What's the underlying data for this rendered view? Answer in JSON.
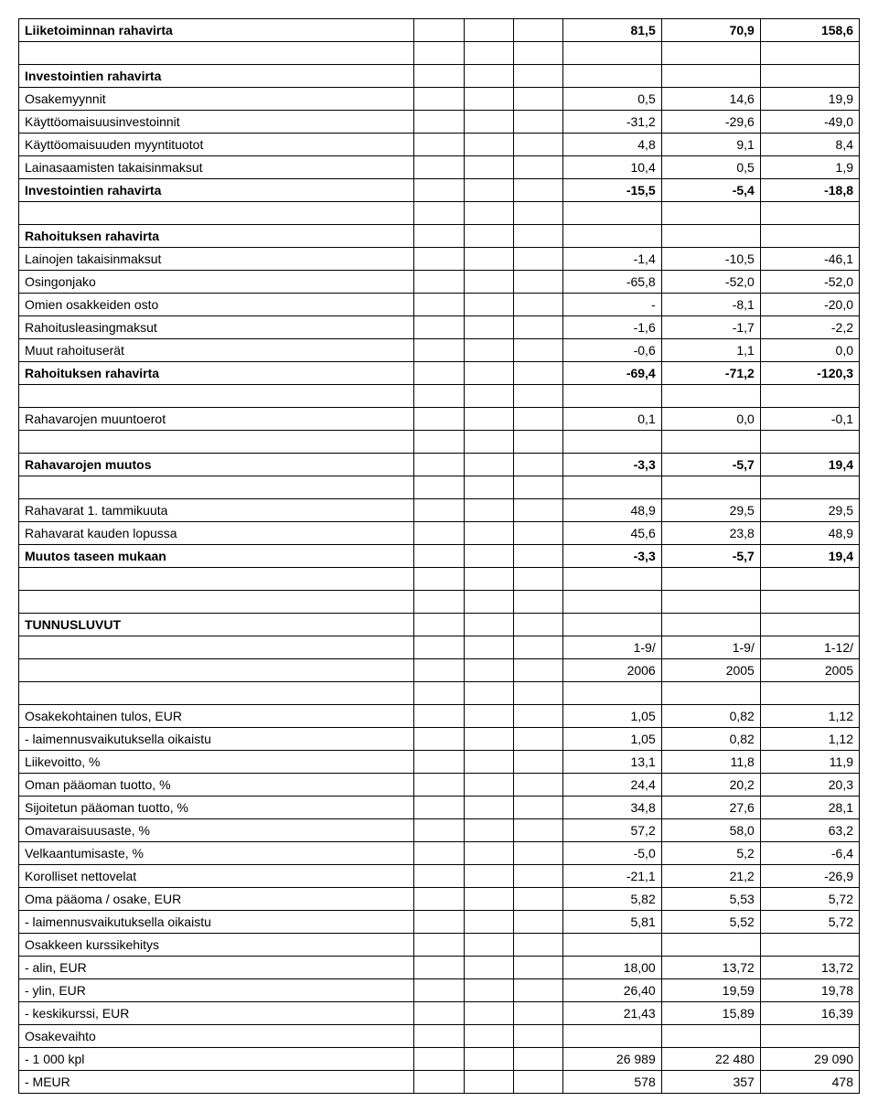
{
  "section1": {
    "rows": [
      {
        "label": "Liiketoiminnan rahavirta",
        "bold": true,
        "vals": [
          "81,5",
          "70,9",
          "158,6"
        ]
      }
    ]
  },
  "section2": {
    "title": "Investointien rahavirta",
    "rows": [
      {
        "label": "Osakemyynnit",
        "bold": false,
        "vals": [
          "0,5",
          "14,6",
          "19,9"
        ]
      },
      {
        "label": "Käyttöomaisuusinvestoinnit",
        "bold": false,
        "vals": [
          "-31,2",
          "-29,6",
          "-49,0"
        ]
      },
      {
        "label": "Käyttöomaisuuden myyntituotot",
        "bold": false,
        "vals": [
          "4,8",
          "9,1",
          "8,4"
        ]
      },
      {
        "label": "Lainasaamisten takaisinmaksut",
        "bold": false,
        "vals": [
          "10,4",
          "0,5",
          "1,9"
        ]
      },
      {
        "label": "Investointien rahavirta",
        "bold": true,
        "vals": [
          "-15,5",
          "-5,4",
          "-18,8"
        ]
      }
    ]
  },
  "section3": {
    "title": "Rahoituksen rahavirta",
    "rows": [
      {
        "label": "Lainojen takaisinmaksut",
        "bold": false,
        "vals": [
          "-1,4",
          "-10,5",
          "-46,1"
        ]
      },
      {
        "label": "Osingonjako",
        "bold": false,
        "vals": [
          "-65,8",
          "-52,0",
          "-52,0"
        ]
      },
      {
        "label": "Omien osakkeiden osto",
        "bold": false,
        "vals": [
          "-",
          "-8,1",
          "-20,0"
        ]
      },
      {
        "label": "Rahoitusleasingmaksut",
        "bold": false,
        "vals": [
          "-1,6",
          "-1,7",
          "-2,2"
        ]
      },
      {
        "label": "Muut rahoituserät",
        "bold": false,
        "vals": [
          "-0,6",
          "1,1",
          "0,0"
        ]
      },
      {
        "label": "Rahoituksen rahavirta",
        "bold": true,
        "vals": [
          "-69,4",
          "-71,2",
          "-120,3"
        ]
      }
    ]
  },
  "section4": {
    "rows": [
      {
        "label": "Rahavarojen muuntoerot",
        "bold": false,
        "vals": [
          "0,1",
          "0,0",
          "-0,1"
        ]
      }
    ]
  },
  "section5": {
    "rows": [
      {
        "label": "Rahavarojen muutos",
        "bold": true,
        "vals": [
          "-3,3",
          "-5,7",
          "19,4"
        ]
      }
    ]
  },
  "section6": {
    "rows": [
      {
        "label": "Rahavarat 1. tammikuuta",
        "bold": false,
        "vals": [
          "48,9",
          "29,5",
          "29,5"
        ]
      },
      {
        "label": "Rahavarat kauden lopussa",
        "bold": false,
        "vals": [
          "45,6",
          "23,8",
          "48,9"
        ]
      },
      {
        "label": "Muutos taseen mukaan",
        "bold": true,
        "vals": [
          "-3,3",
          "-5,7",
          "19,4"
        ]
      }
    ]
  },
  "tunnus": {
    "title": "TUNNUSLUVUT",
    "headers1": [
      "1-9/",
      "1-9/",
      "1-12/"
    ],
    "headers2": [
      "2006",
      "2005",
      "2005"
    ],
    "rows": [
      {
        "label": "Osakekohtainen tulos, EUR",
        "bold": false,
        "vals": [
          "1,05",
          "0,82",
          "1,12"
        ]
      },
      {
        "label": "- laimennusvaikutuksella oikaistu",
        "bold": false,
        "vals": [
          "1,05",
          "0,82",
          "1,12"
        ]
      },
      {
        "label": "Liikevoitto, %",
        "bold": false,
        "vals": [
          "13,1",
          "11,8",
          "11,9"
        ]
      },
      {
        "label": "Oman pääoman tuotto, %",
        "bold": false,
        "vals": [
          "24,4",
          "20,2",
          "20,3"
        ]
      },
      {
        "label": "Sijoitetun pääoman tuotto, %",
        "bold": false,
        "vals": [
          "34,8",
          "27,6",
          "28,1"
        ]
      },
      {
        "label": "Omavaraisuusaste, %",
        "bold": false,
        "vals": [
          "57,2",
          "58,0",
          "63,2"
        ]
      },
      {
        "label": "Velkaantumisaste, %",
        "bold": false,
        "vals": [
          "-5,0",
          "5,2",
          "-6,4"
        ]
      },
      {
        "label": "Korolliset nettovelat",
        "bold": false,
        "vals": [
          "-21,1",
          "21,2",
          "-26,9"
        ]
      },
      {
        "label": "Oma pääoma / osake, EUR",
        "bold": false,
        "vals": [
          "5,82",
          "5,53",
          "5,72"
        ]
      },
      {
        "label": "- laimennusvaikutuksella oikaistu",
        "bold": false,
        "vals": [
          "5,81",
          "5,52",
          "5,72"
        ]
      },
      {
        "label": "Osakkeen kurssikehitys",
        "bold": false,
        "vals": [
          "",
          "",
          ""
        ]
      },
      {
        "label": "- alin, EUR",
        "bold": false,
        "vals": [
          "18,00",
          "13,72",
          "13,72"
        ]
      },
      {
        "label": "- ylin, EUR",
        "bold": false,
        "vals": [
          "26,40",
          "19,59",
          "19,78"
        ]
      },
      {
        "label": "- keskikurssi, EUR",
        "bold": false,
        "vals": [
          "21,43",
          "15,89",
          "16,39"
        ]
      },
      {
        "label": "Osakevaihto",
        "bold": false,
        "vals": [
          "",
          "",
          ""
        ]
      },
      {
        "label": "- 1 000 kpl",
        "bold": false,
        "vals": [
          "26 989",
          "22 480",
          "29 090"
        ]
      },
      {
        "label": "- MEUR",
        "bold": false,
        "vals": [
          "578",
          "357",
          "478"
        ]
      }
    ]
  }
}
